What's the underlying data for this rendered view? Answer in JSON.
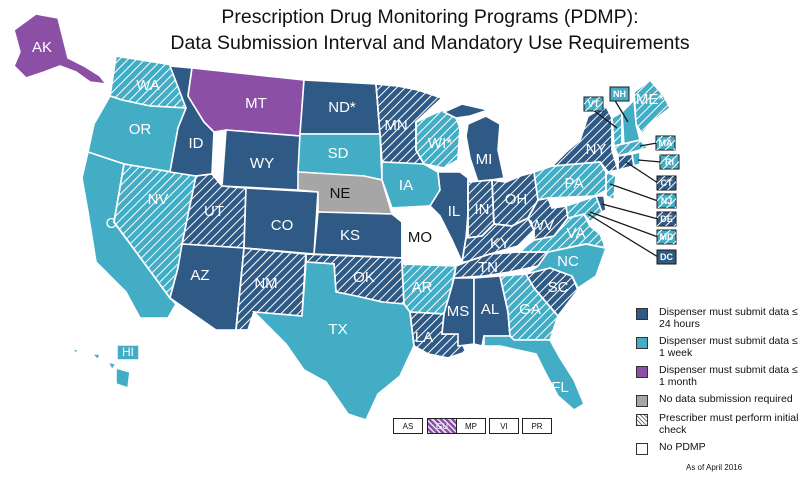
{
  "title_line1": "Prescription Drug Monitoring Programs (PDMP):",
  "title_line2": "Data Submission Interval and Mandatory Use Requirements",
  "colors": {
    "dark": "#2f5a86",
    "light": "#43adc5",
    "purple": "#8b4fa6",
    "gray": "#a6a6a6",
    "none": "#ffffff"
  },
  "legend": [
    {
      "key": "dark",
      "text": "Dispenser must submit data ≤ 24 hours"
    },
    {
      "key": "light",
      "text": "Dispenser must submit data ≤ 1 week"
    },
    {
      "key": "purple",
      "text": "Dispenser must submit data ≤ 1 month"
    },
    {
      "key": "gray",
      "text": "No data submission required"
    },
    {
      "key": "hatch",
      "text": "Prescriber must perform initial check"
    },
    {
      "key": "none",
      "text": "No PDMP"
    }
  ],
  "as_of": "As of April 2016",
  "territories": [
    {
      "label": "AS",
      "cat": "none",
      "hatch": false
    },
    {
      "label": "GU",
      "cat": "purple",
      "hatch": true
    },
    {
      "label": "MP",
      "cat": "none",
      "hatch": false
    },
    {
      "label": "VI",
      "cat": "none",
      "hatch": false
    },
    {
      "label": "PR",
      "cat": "none",
      "hatch": false
    }
  ],
  "states": {
    "WA": {
      "label": "WA",
      "cat": "light",
      "hatch": true
    },
    "OR": {
      "label": "OR",
      "cat": "light",
      "hatch": false
    },
    "CA": {
      "label": "CA",
      "cat": "light",
      "hatch": false
    },
    "NV": {
      "label": "NV",
      "cat": "light",
      "hatch": true
    },
    "ID": {
      "label": "ID",
      "cat": "dark",
      "hatch": false
    },
    "MT": {
      "label": "MT",
      "cat": "purple",
      "hatch": false
    },
    "WY": {
      "label": "WY",
      "cat": "dark",
      "hatch": false
    },
    "UT": {
      "label": "UT",
      "cat": "dark",
      "hatch": true
    },
    "AZ": {
      "label": "AZ",
      "cat": "dark",
      "hatch": false
    },
    "CO": {
      "label": "CO",
      "cat": "dark",
      "hatch": false
    },
    "NM": {
      "label": "NM",
      "cat": "dark",
      "hatch": true
    },
    "ND": {
      "label": "ND*",
      "cat": "dark",
      "hatch": false
    },
    "SD": {
      "label": "SD",
      "cat": "light",
      "hatch": false
    },
    "NE": {
      "label": "NE",
      "cat": "gray",
      "hatch": false
    },
    "KS": {
      "label": "KS",
      "cat": "dark",
      "hatch": false
    },
    "OK": {
      "label": "OK",
      "cat": "dark",
      "hatch": true
    },
    "TX": {
      "label": "TX",
      "cat": "light",
      "hatch": false
    },
    "MN": {
      "label": "MN",
      "cat": "dark",
      "hatch": true
    },
    "IA": {
      "label": "IA",
      "cat": "light",
      "hatch": false
    },
    "MO": {
      "label": "MO",
      "cat": "none",
      "hatch": false
    },
    "AR": {
      "label": "AR",
      "cat": "light",
      "hatch": true
    },
    "LA": {
      "label": "LA",
      "cat": "dark",
      "hatch": true
    },
    "WI": {
      "label": "WI*",
      "cat": "light",
      "hatch": true
    },
    "IL": {
      "label": "IL",
      "cat": "dark",
      "hatch": false
    },
    "MI": {
      "label": "MI",
      "cat": "dark",
      "hatch": false
    },
    "IN": {
      "label": "IN",
      "cat": "dark",
      "hatch": true
    },
    "OH": {
      "label": "OH",
      "cat": "dark",
      "hatch": true
    },
    "KY": {
      "label": "KY",
      "cat": "dark",
      "hatch": true
    },
    "TN": {
      "label": "TN",
      "cat": "dark",
      "hatch": true
    },
    "MS": {
      "label": "MS",
      "cat": "dark",
      "hatch": false
    },
    "AL": {
      "label": "AL",
      "cat": "dark",
      "hatch": false
    },
    "GA": {
      "label": "GA",
      "cat": "light",
      "hatch": true
    },
    "FL": {
      "label": "FL",
      "cat": "light",
      "hatch": false
    },
    "SC": {
      "label": "SC",
      "cat": "dark",
      "hatch": true
    },
    "NC": {
      "label": "NC",
      "cat": "light",
      "hatch": false
    },
    "VA": {
      "label": "VA",
      "cat": "light",
      "hatch": true
    },
    "WV": {
      "label": "WV",
      "cat": "dark",
      "hatch": true
    },
    "PA": {
      "label": "PA",
      "cat": "light",
      "hatch": true
    },
    "NY": {
      "label": "NY",
      "cat": "dark",
      "hatch": true
    },
    "ME": {
      "label": "ME*",
      "cat": "light",
      "hatch": true
    },
    "AK": {
      "label": "AK",
      "cat": "purple",
      "hatch": false
    },
    "HI": {
      "label": "HI",
      "cat": "light",
      "hatch": false
    }
  },
  "small_states": [
    {
      "label": "VT",
      "cat": "light",
      "hatch": true
    },
    {
      "label": "NH",
      "cat": "light",
      "hatch": false
    },
    {
      "label": "MA",
      "cat": "light",
      "hatch": true
    },
    {
      "label": "RI",
      "cat": "light",
      "hatch": true
    },
    {
      "label": "CT",
      "cat": "dark",
      "hatch": true
    },
    {
      "label": "NJ",
      "cat": "light",
      "hatch": true
    },
    {
      "label": "DE",
      "cat": "dark",
      "hatch": true
    },
    {
      "label": "MD",
      "cat": "light",
      "hatch": true
    },
    {
      "label": "DC",
      "cat": "dark",
      "hatch": false
    }
  ]
}
